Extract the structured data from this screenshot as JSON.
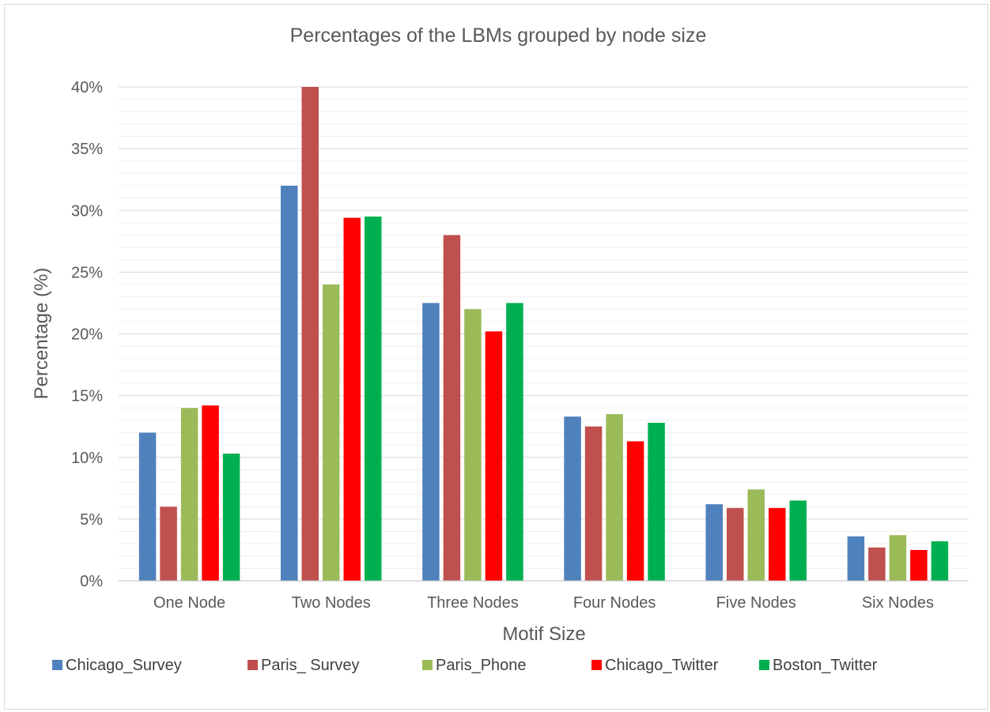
{
  "chart_data": {
    "type": "bar",
    "title": "Percentages of the LBMs grouped by node size",
    "xlabel": "Motif Size",
    "ylabel": "Percentage (%)",
    "ylim": [
      0,
      40
    ],
    "yticks": [
      0,
      5,
      10,
      15,
      20,
      25,
      30,
      35,
      40
    ],
    "ytick_suffix": "%",
    "minor_grid_step": 1,
    "grid": true,
    "legend_position": "bottom",
    "categories": [
      "One Node",
      "Two Nodes",
      "Three Nodes",
      "Four Nodes",
      "Five Nodes",
      "Six Nodes"
    ],
    "series": [
      {
        "name": "Chicago_Survey",
        "color": "#4f81bd",
        "values": [
          12.0,
          32.0,
          22.5,
          13.3,
          6.2,
          3.6
        ]
      },
      {
        "name": "Paris_ Survey",
        "color": "#c0504d",
        "values": [
          6.0,
          40.0,
          28.0,
          12.5,
          5.9,
          2.7
        ]
      },
      {
        "name": "Paris_Phone",
        "color": "#9bbb59",
        "values": [
          14.0,
          24.0,
          22.0,
          13.5,
          7.4,
          3.7
        ]
      },
      {
        "name": "Chicago_Twitter",
        "color": "#ff0000",
        "values": [
          14.2,
          29.4,
          20.2,
          11.3,
          5.9,
          2.5
        ]
      },
      {
        "name": "Boston_Twitter",
        "color": "#00b050",
        "values": [
          10.3,
          29.5,
          22.5,
          12.8,
          6.5,
          3.2
        ]
      }
    ]
  }
}
